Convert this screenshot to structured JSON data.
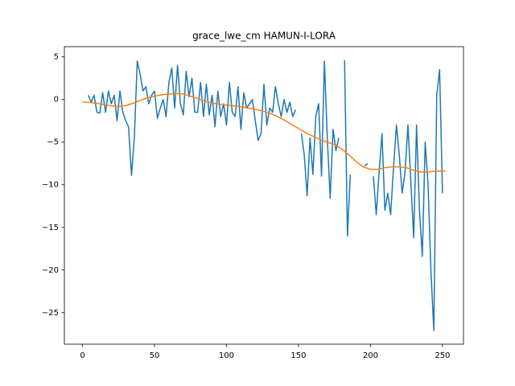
{
  "chart_data": {
    "type": "line",
    "title": "grace_lwe_cm HAMUN-I-LORA",
    "xlim": [
      -12.6,
      264.6
    ],
    "ylim": [
      -28.7,
      6.2
    ],
    "xticks": [
      0,
      50,
      100,
      150,
      200,
      250
    ],
    "yticks": [
      5,
      0,
      {
        "value": -5,
        "label": "−5"
      },
      {
        "value": -10,
        "label": "−10"
      },
      {
        "value": -15,
        "label": "−15"
      },
      {
        "value": -20,
        "label": "−20"
      },
      {
        "value": -25,
        "label": "−25"
      }
    ],
    "grid": false,
    "series": [
      {
        "color": "#1f77b4",
        "x": [
          4,
          6,
          8,
          10,
          12,
          14,
          16,
          18,
          20,
          22,
          24,
          26,
          28,
          30,
          32,
          34,
          36,
          38,
          40,
          42,
          44,
          46,
          48,
          50,
          52,
          54,
          56,
          58,
          60,
          62,
          64,
          66,
          68,
          70,
          72,
          74,
          76,
          78,
          80,
          82,
          84,
          86,
          88,
          90,
          92,
          94,
          96,
          98,
          100,
          102,
          104,
          106,
          108,
          110,
          112,
          114,
          116,
          118,
          120,
          122,
          124,
          126,
          128,
          130,
          132,
          134,
          136,
          138,
          140,
          142,
          144,
          146,
          148,
          150,
          152,
          154,
          156,
          158,
          160,
          162,
          164,
          166,
          168,
          170,
          172,
          174,
          176,
          178,
          180,
          182,
          184,
          186,
          188,
          190,
          192,
          194,
          196,
          198,
          200,
          202,
          204,
          206,
          208,
          210,
          212,
          214,
          216,
          218,
          220,
          222,
          224,
          226,
          228,
          230,
          232,
          234,
          236,
          238,
          240,
          242,
          244,
          246,
          248,
          250
        ],
        "values": [
          0.5,
          -0.3,
          0.5,
          -1.5,
          -1.6,
          0.8,
          -1.5,
          1.0,
          -0.5,
          0.5,
          -2.5,
          1.0,
          -1.5,
          -2.5,
          -3.2,
          -8.9,
          -4.5,
          4.5,
          3.0,
          1.0,
          1.5,
          -0.5,
          0.5,
          1.0,
          -2.2,
          -1.0,
          0.0,
          -2.0,
          2.0,
          3.7,
          -1.0,
          4.0,
          -0.5,
          -1.8,
          3.3,
          0.3,
          2.5,
          -1.5,
          -1.5,
          2.0,
          -2.0,
          1.8,
          -1.8,
          0.5,
          -3.2,
          1.0,
          -2.0,
          -0.5,
          -3.0,
          2.0,
          -1.5,
          -2.0,
          1.5,
          -3.5,
          0.8,
          -1.0,
          -0.5,
          0.0,
          -2.5,
          -4.8,
          -4.0,
          1.8,
          -3.0,
          -1.0,
          -1.5,
          1.5,
          -0.5,
          -2.0,
          0.0,
          -1.5,
          -0.3,
          -2.0,
          -1.2,
          null,
          -4.0,
          -6.5,
          -11.3,
          -4.5,
          -8.8,
          -2.0,
          -0.5,
          -9.0,
          4.5,
          -4.5,
          -11.6,
          -3.5,
          -6.0,
          -4.5,
          null,
          4.6,
          -16.0,
          -8.8,
          null,
          null,
          null,
          null,
          -7.8,
          -7.5,
          null,
          -9.0,
          -13.5,
          -8.5,
          -4.0,
          -13.0,
          -11.0,
          -13.5,
          -8.0,
          -3.0,
          -6.5,
          -11.0,
          -8.5,
          -3.0,
          -9.5,
          -16.2,
          -3.0,
          -13.0,
          -18.4,
          -5.0,
          -10.0,
          -20.2,
          -27.1,
          0.5,
          3.5,
          -11.0
        ]
      },
      {
        "color": "#ff7f0e",
        "x": [
          0,
          5,
          10,
          15,
          20,
          25,
          30,
          35,
          40,
          45,
          50,
          55,
          60,
          65,
          70,
          75,
          80,
          85,
          90,
          95,
          100,
          105,
          110,
          115,
          120,
          125,
          130,
          135,
          140,
          145,
          150,
          155,
          160,
          165,
          170,
          175,
          180,
          185,
          190,
          195,
          200,
          205,
          210,
          215,
          220,
          225,
          230,
          235,
          240,
          245,
          250,
          252
        ],
        "values": [
          -0.3,
          -0.35,
          -0.45,
          -0.6,
          -0.75,
          -0.8,
          -0.7,
          -0.45,
          -0.1,
          0.2,
          0.4,
          0.55,
          0.65,
          0.7,
          0.65,
          0.4,
          0.1,
          -0.2,
          -0.4,
          -0.55,
          -0.65,
          -0.75,
          -0.85,
          -1.0,
          -1.15,
          -1.35,
          -1.6,
          -1.95,
          -2.4,
          -2.9,
          -3.4,
          -3.9,
          -4.3,
          -4.7,
          -5.0,
          -5.3,
          -5.8,
          -6.5,
          -7.3,
          -7.9,
          -8.2,
          -8.2,
          -8.0,
          -7.9,
          -7.9,
          -8.0,
          -8.3,
          -8.5,
          -8.5,
          -8.4,
          -8.4,
          -8.4
        ]
      }
    ]
  }
}
